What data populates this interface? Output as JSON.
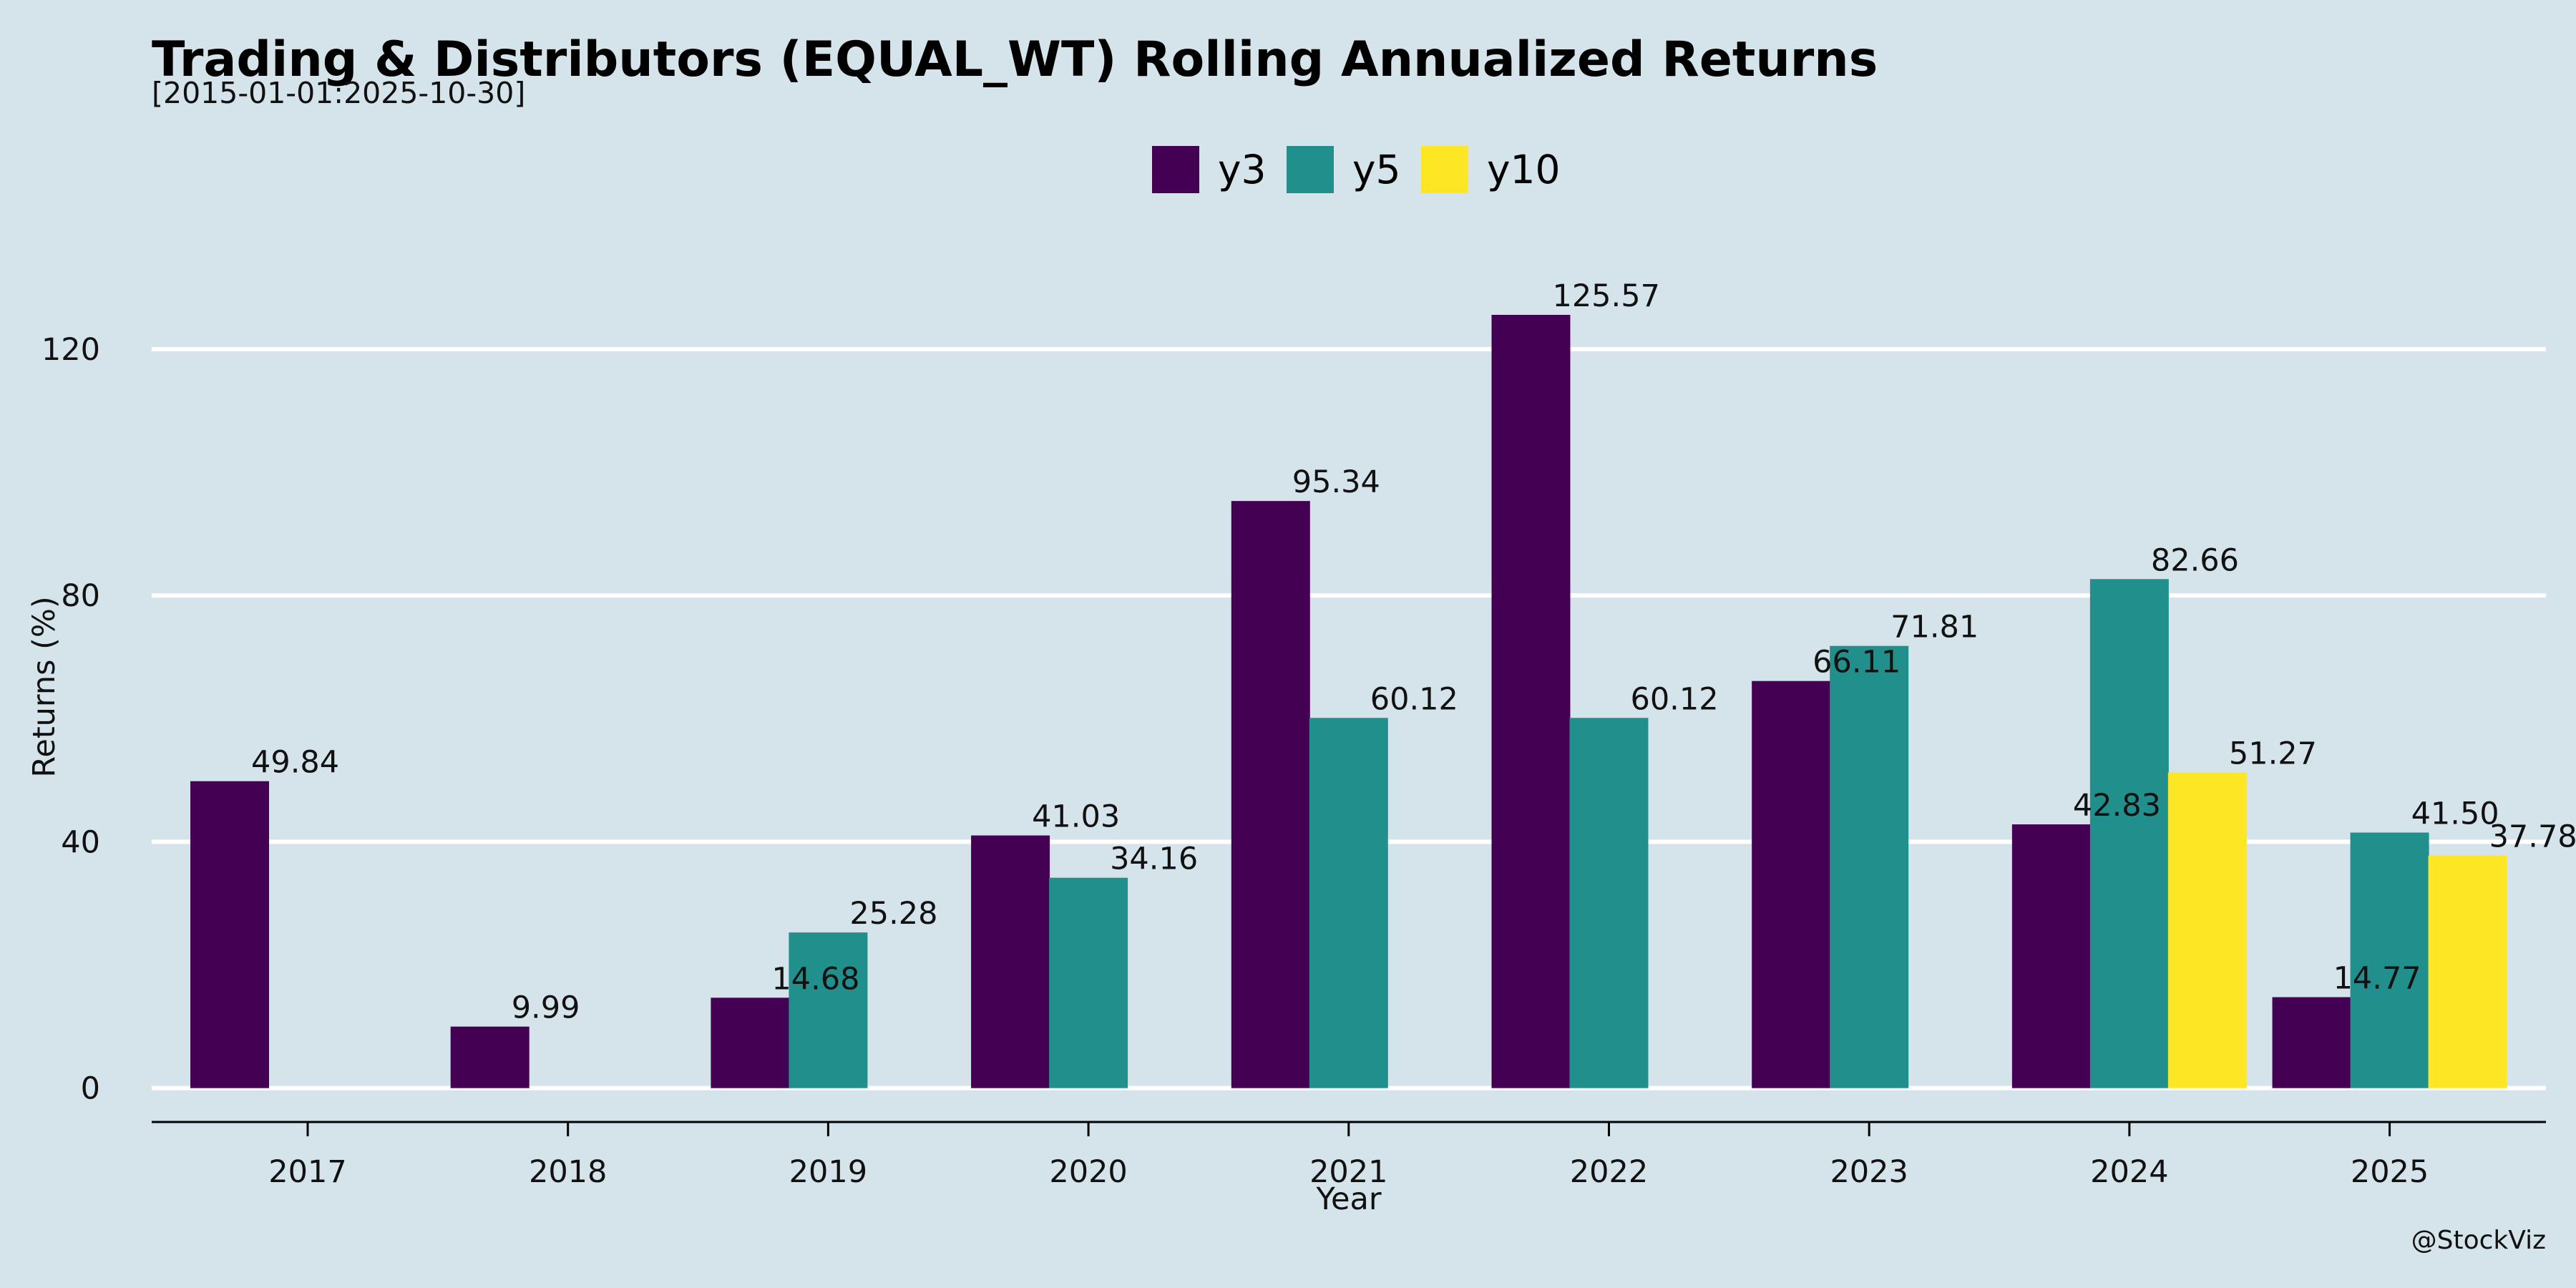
{
  "chart_data": {
    "type": "bar",
    "title": "Trading & Distributors (EQUAL_WT) Rolling Annualized Returns",
    "subtitle": "[2015-01-01:2025-10-30]",
    "xlabel": "Year",
    "ylabel": "Returns (%)",
    "categories": [
      "2017",
      "2018",
      "2019",
      "2020",
      "2021",
      "2022",
      "2023",
      "2024",
      "2025"
    ],
    "ylim": [
      -5.5,
      143
    ],
    "yticks": [
      0,
      40,
      80,
      120
    ],
    "grid": "horizontal",
    "legend_position": "top-center",
    "series": [
      {
        "name": "y3",
        "color": "#440154",
        "values": [
          49.84,
          9.99,
          14.68,
          41.03,
          95.34,
          125.57,
          66.11,
          42.83,
          14.77
        ]
      },
      {
        "name": "y5",
        "color": "#21908d",
        "values": [
          null,
          null,
          25.28,
          34.16,
          60.12,
          60.12,
          71.81,
          82.66,
          41.5
        ]
      },
      {
        "name": "y10",
        "color": "#fde725",
        "values": [
          null,
          null,
          null,
          null,
          null,
          null,
          null,
          51.27,
          37.78
        ]
      }
    ],
    "data_labels": [
      {
        "category": "2017",
        "series": "y3",
        "text": "49.84"
      },
      {
        "category": "2018",
        "series": "y3",
        "text": "9.99"
      },
      {
        "category": "2019",
        "series": "y3",
        "text": "14.68"
      },
      {
        "category": "2019",
        "series": "y5",
        "text": "25.28"
      },
      {
        "category": "2020",
        "series": "y3",
        "text": "41.03"
      },
      {
        "category": "2020",
        "series": "y5",
        "text": "34.16"
      },
      {
        "category": "2021",
        "series": "y3",
        "text": "95.34"
      },
      {
        "category": "2021",
        "series": "y5",
        "text": "60.12"
      },
      {
        "category": "2022",
        "series": "y3",
        "text": "125.57"
      },
      {
        "category": "2022",
        "series": "y5",
        "text": "60.12"
      },
      {
        "category": "2023",
        "series": "y3",
        "text": "66.11"
      },
      {
        "category": "2023",
        "series": "y5",
        "text": "71.81"
      },
      {
        "category": "2024",
        "series": "y3",
        "text": "42.83"
      },
      {
        "category": "2024",
        "series": "y5",
        "text": "82.66"
      },
      {
        "category": "2024",
        "series": "y10",
        "text": "51.27"
      },
      {
        "category": "2025",
        "series": "y3",
        "text": "14.77"
      },
      {
        "category": "2025",
        "series": "y5",
        "text": "41.50"
      },
      {
        "category": "2025",
        "series": "y10",
        "text": "37.78"
      }
    ]
  },
  "credit": "@StockViz",
  "colors": {
    "background": "#d5e4eb",
    "grid": "#ffffff",
    "axis": "#000000"
  }
}
